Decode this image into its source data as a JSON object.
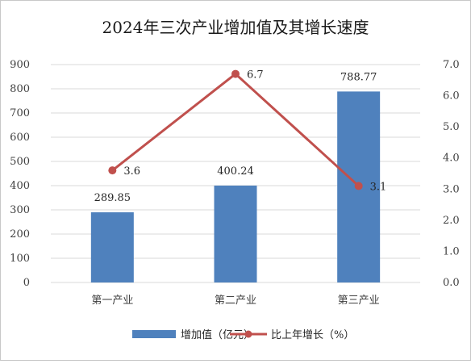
{
  "chart_data": {
    "type": "bar+line",
    "title": "2024年三次产业增加值及其增长速度",
    "categories": [
      "第一产业",
      "第二产业",
      "第三产业"
    ],
    "series": [
      {
        "name": "增加值（亿元）",
        "type": "bar",
        "axis": "left",
        "values": [
          289.85,
          400.24,
          788.77
        ],
        "labels": [
          "289.85",
          "400.24",
          "788.77"
        ]
      },
      {
        "name": "比上年增长（%）",
        "type": "line",
        "axis": "right",
        "values": [
          3.6,
          6.7,
          3.1
        ],
        "labels": [
          "3.6",
          "6.7",
          "3.1"
        ]
      }
    ],
    "y_left": {
      "range": [
        0,
        900
      ],
      "ticks": [
        "0",
        "100",
        "200",
        "300",
        "400",
        "500",
        "600",
        "700",
        "800",
        "900"
      ]
    },
    "y_right": {
      "range": [
        0,
        7
      ],
      "ticks": [
        "0.0",
        "1.0",
        "2.0",
        "3.0",
        "4.0",
        "5.0",
        "6.0",
        "7.0"
      ]
    },
    "grid": true,
    "legend_position": "bottom",
    "colors": {
      "bar": "#4f81bd",
      "line": "#c0504d",
      "grid": "#d9d9d9"
    }
  }
}
